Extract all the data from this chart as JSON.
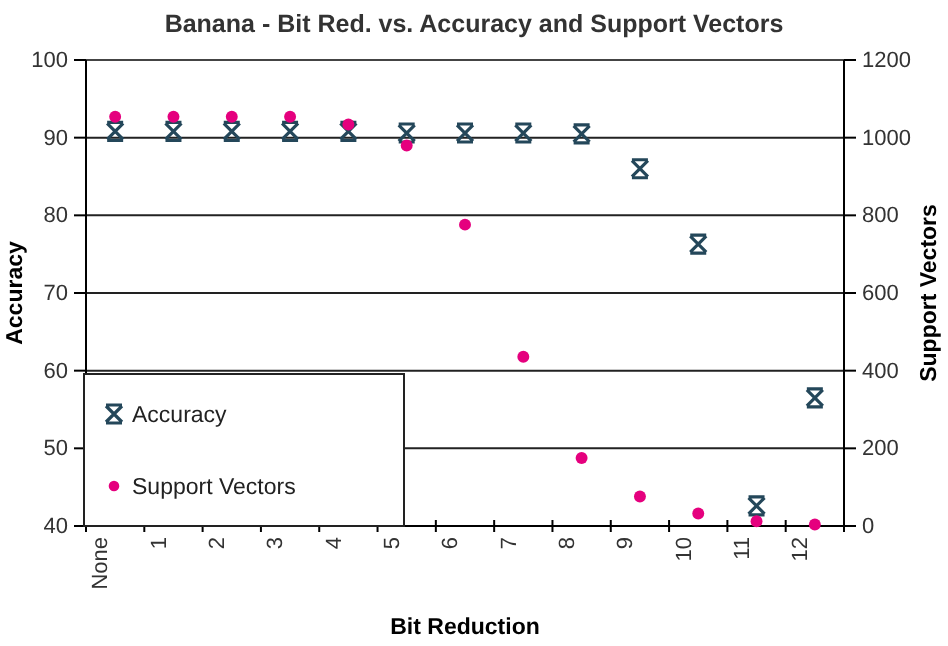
{
  "chart_data": {
    "type": "scatter",
    "title": "Banana - Bit Red. vs. Accuracy and Support Vectors",
    "xlabel": "Bit Reduction",
    "ylabel": "Accuracy",
    "y2label": "Support Vectors",
    "categories": [
      "None",
      "1",
      "2",
      "3",
      "4",
      "5",
      "6",
      "7",
      "8",
      "9",
      "10",
      "11",
      "12"
    ],
    "series": [
      {
        "name": "Accuracy",
        "color": "#24475a",
        "marker": "cross",
        "values": [
          90.8,
          90.8,
          90.8,
          90.8,
          90.8,
          90.6,
          90.6,
          90.6,
          90.5,
          86,
          76.3,
          42.6,
          56.5
        ]
      },
      {
        "name": "Support Vectors",
        "color": "#e5007e",
        "marker": "circle",
        "axis": "y2",
        "values": [
          1054,
          1054,
          1054,
          1054,
          1034,
          980,
          776,
          436,
          175,
          76,
          32,
          12,
          4
        ]
      }
    ],
    "ylim": [
      40,
      100
    ],
    "yticks": [
      40,
      50,
      60,
      70,
      80,
      90,
      100
    ],
    "y2lim": [
      0,
      1200
    ],
    "y2ticks": [
      0,
      200,
      400,
      600,
      800,
      1000,
      1200
    ],
    "grid": "y",
    "legend": "bottom left"
  }
}
